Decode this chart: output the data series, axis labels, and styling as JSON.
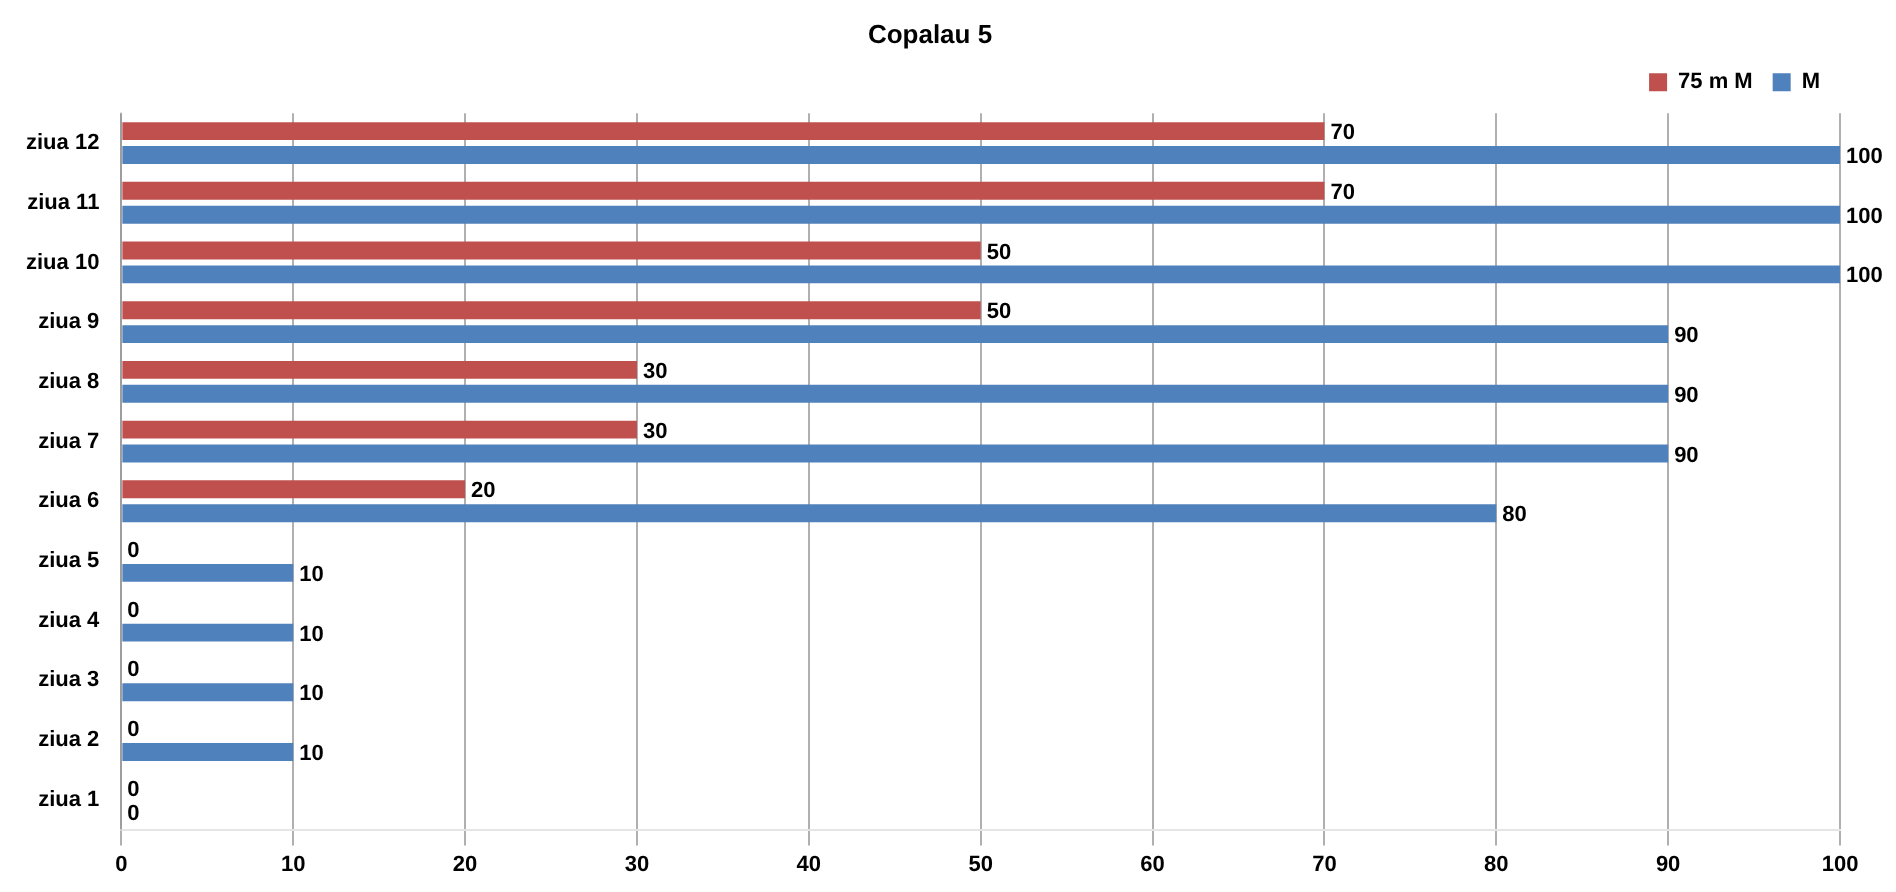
{
  "chart_data": {
    "type": "bar",
    "orientation": "horizontal",
    "title": "Copalau 5",
    "categories": [
      "ziua 12",
      "ziua 11",
      "ziua 10",
      "ziua 9",
      "ziua 8",
      "ziua 7",
      "ziua 6",
      "ziua 5",
      "ziua 4",
      "ziua 3",
      "ziua 2",
      "ziua 1"
    ],
    "series": [
      {
        "name": "75 m M",
        "color": "#c0504d",
        "values": [
          70,
          70,
          50,
          50,
          30,
          30,
          20,
          0,
          0,
          0,
          0,
          0
        ]
      },
      {
        "name": "M",
        "color": "#4f81bd",
        "values": [
          100,
          100,
          100,
          90,
          90,
          90,
          80,
          10,
          10,
          10,
          10,
          0
        ]
      }
    ],
    "xlim": [
      0,
      100
    ],
    "xticks": [
      0,
      10,
      20,
      30,
      40,
      50,
      60,
      70,
      80,
      90,
      100
    ],
    "grid": "x",
    "legend": "top right",
    "data_labels": true
  }
}
